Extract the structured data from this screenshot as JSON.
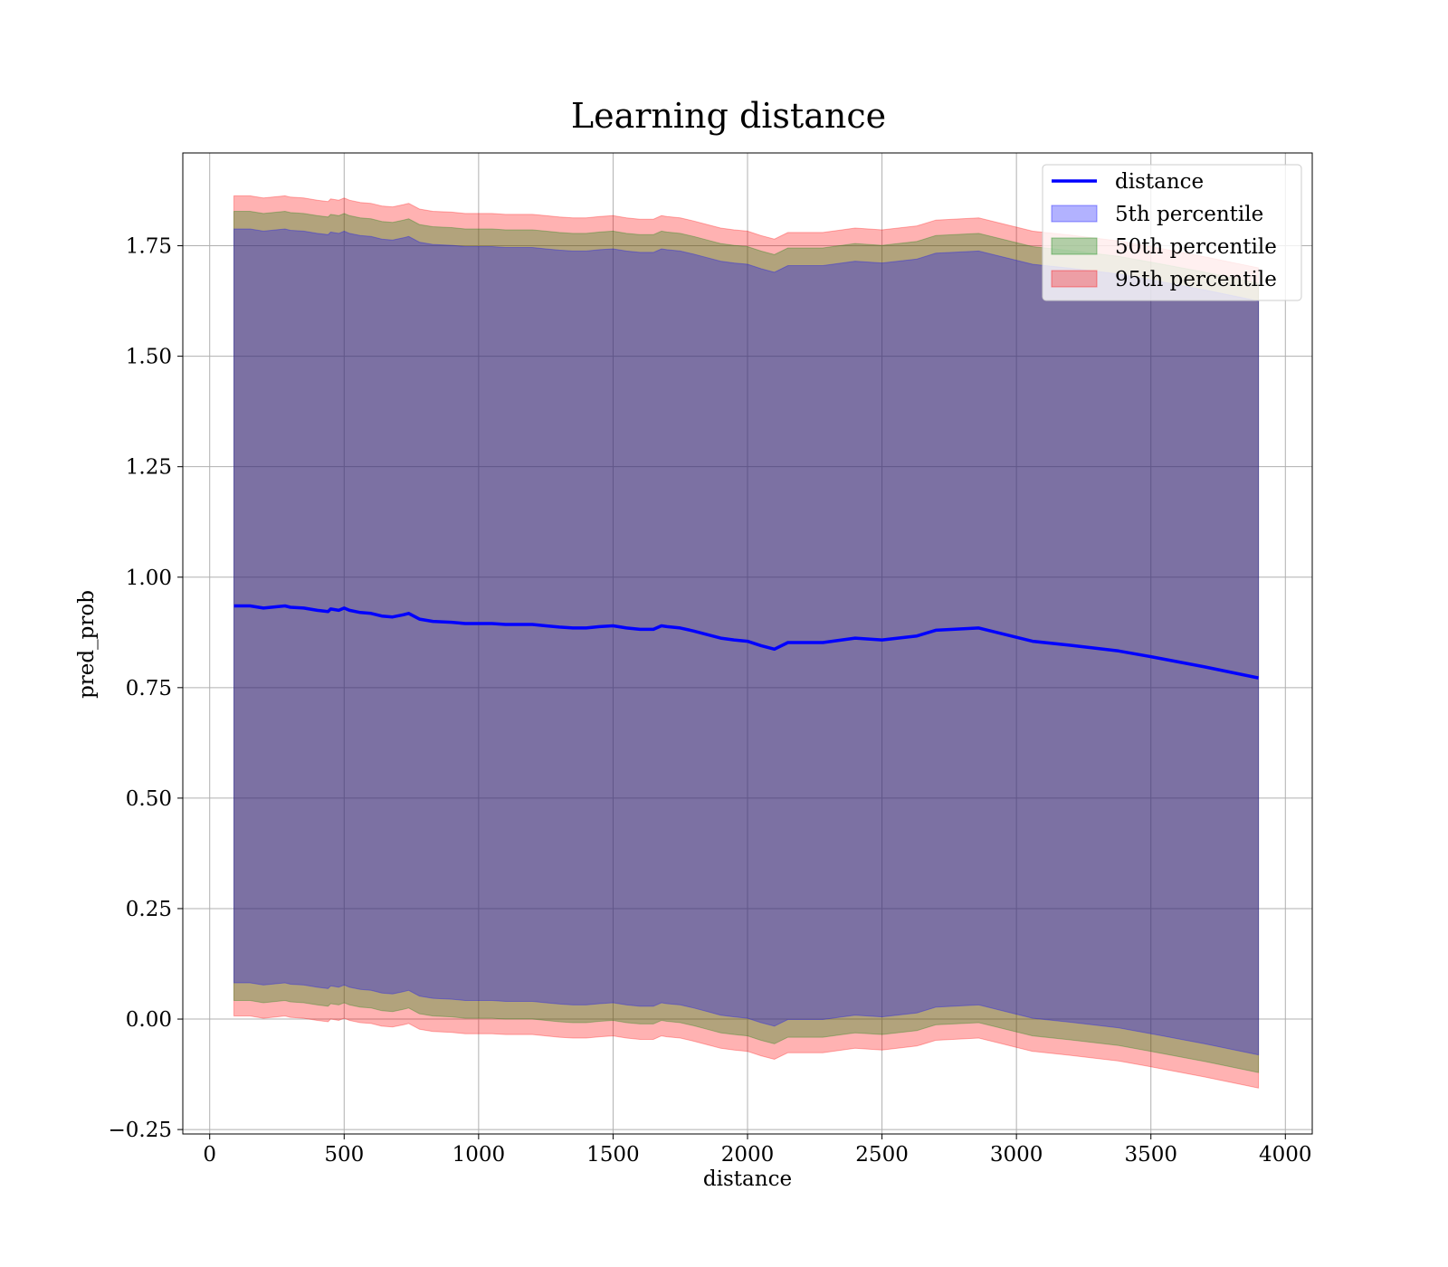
{
  "chart_data": {
    "type": "area",
    "title": "Learning distance",
    "xlabel": "distance",
    "ylabel": "pred_prob",
    "xlim": [
      -100,
      4100
    ],
    "ylim": [
      -0.26,
      1.96
    ],
    "xticks": [
      0,
      500,
      1000,
      1500,
      2000,
      2500,
      3000,
      3500,
      4000
    ],
    "xtick_labels": [
      "0",
      "500",
      "1000",
      "1500",
      "2000",
      "2500",
      "3000",
      "3500",
      "4000"
    ],
    "yticks": [
      -0.25,
      0,
      0.25,
      0.5,
      0.75,
      1.0,
      1.25,
      1.5,
      1.75
    ],
    "ytick_labels": [
      "−0.25",
      "0.00",
      "0.25",
      "0.50",
      "0.75",
      "1.00",
      "1.25",
      "1.50",
      "1.75"
    ],
    "grid": true,
    "legend_position": "top-right",
    "x": [
      90,
      150,
      200,
      280,
      300,
      350,
      400,
      440,
      450,
      480,
      500,
      520,
      560,
      600,
      640,
      680,
      720,
      740,
      780,
      830,
      900,
      950,
      1000,
      1050,
      1100,
      1150,
      1200,
      1250,
      1300,
      1350,
      1400,
      1450,
      1500,
      1550,
      1600,
      1650,
      1680,
      1700,
      1750,
      1800,
      1850,
      1900,
      1950,
      2000,
      2050,
      2100,
      2150,
      2200,
      2280,
      2400,
      2500,
      2630,
      2700,
      2860,
      3060,
      3200,
      3380,
      3500,
      3700,
      3900
    ],
    "median": [
      0.935,
      0.935,
      0.93,
      0.935,
      0.932,
      0.93,
      0.925,
      0.922,
      0.928,
      0.925,
      0.93,
      0.925,
      0.92,
      0.918,
      0.912,
      0.91,
      0.915,
      0.918,
      0.905,
      0.9,
      0.898,
      0.895,
      0.895,
      0.895,
      0.893,
      0.893,
      0.893,
      0.89,
      0.887,
      0.885,
      0.885,
      0.888,
      0.89,
      0.885,
      0.882,
      0.882,
      0.89,
      0.888,
      0.885,
      0.878,
      0.87,
      0.862,
      0.858,
      0.855,
      0.845,
      0.837,
      0.852,
      0.852,
      0.852,
      0.862,
      0.858,
      0.867,
      0.88,
      0.885,
      0.855,
      0.846,
      0.833,
      0.82,
      0.797,
      0.772
    ],
    "series": [
      {
        "name": "distance",
        "kind": "line",
        "color": "#0000ff"
      },
      {
        "name": "5th percentile",
        "kind": "band",
        "color": "#0000ff",
        "opacity": 0.3,
        "lower_offset": -0.853,
        "upper_offset": 0.853
      },
      {
        "name": "50th percentile",
        "kind": "band",
        "color": "#008000",
        "opacity": 0.3,
        "lower_offset": -0.893,
        "upper_offset": 0.893
      },
      {
        "name": "95th percentile",
        "kind": "band",
        "color": "#ff0000",
        "opacity": 0.3,
        "lower_offset": -0.928,
        "upper_offset": 0.928
      }
    ]
  }
}
